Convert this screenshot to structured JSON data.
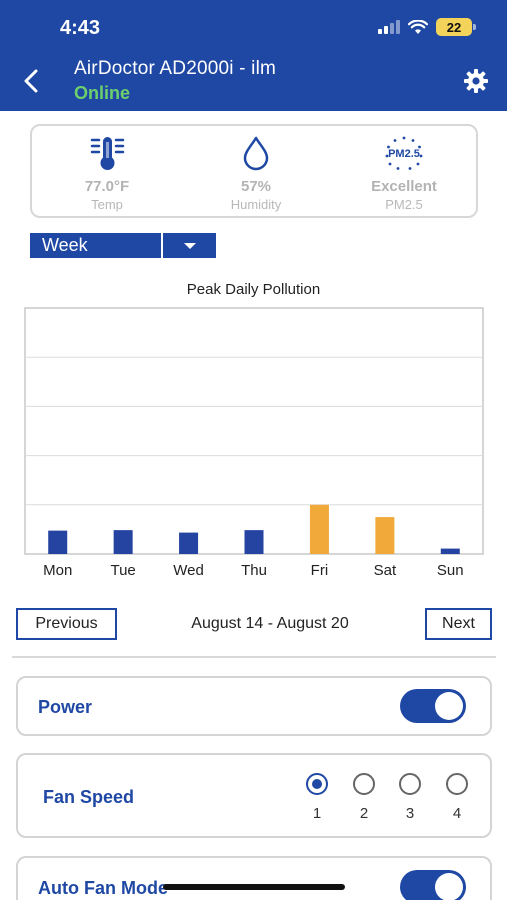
{
  "status_bar": {
    "time": "4:43",
    "battery": "22"
  },
  "header": {
    "title": "AirDoctor AD2000i - ilm",
    "status": "Online"
  },
  "environment": [
    {
      "icon": "thermometer-icon",
      "value": "77.0°F",
      "label": "Temp"
    },
    {
      "icon": "water-drop-icon",
      "value": "57%",
      "label": "Humidity"
    },
    {
      "icon": "pm25-icon",
      "icon_text": "PM2.5",
      "value": "Excellent",
      "label": "PM2.5"
    }
  ],
  "range_selector": {
    "selected": "Week"
  },
  "chart_data": {
    "type": "bar",
    "title": "Peak Daily Pollution",
    "categories": [
      "Mon",
      "Tue",
      "Wed",
      "Thu",
      "Fri",
      "Sat",
      "Sun"
    ],
    "values": [
      0.95,
      0.97,
      0.87,
      0.97,
      2.0,
      1.5,
      0.22
    ],
    "colors": [
      "#2543a0",
      "#2543a0",
      "#2543a0",
      "#2543a0",
      "#f1a93a",
      "#f1a93a",
      "#2543a0"
    ],
    "ylim": [
      0,
      10
    ],
    "grid": true
  },
  "pagination": {
    "previous_label": "Previous",
    "range_label": "August 14 - August 20",
    "next_label": "Next"
  },
  "controls": {
    "power": {
      "label": "Power",
      "on": true
    },
    "fan_speed": {
      "label": "Fan Speed",
      "options": [
        "1",
        "2",
        "3",
        "4"
      ],
      "selected": "1"
    },
    "auto_fan_mode": {
      "label": "Auto Fan Mode",
      "on": true
    }
  },
  "colors": {
    "brand": "#1f48a4",
    "online": "#6cd06c",
    "bar_normal": "#2543a0",
    "bar_high": "#f1a93a"
  }
}
